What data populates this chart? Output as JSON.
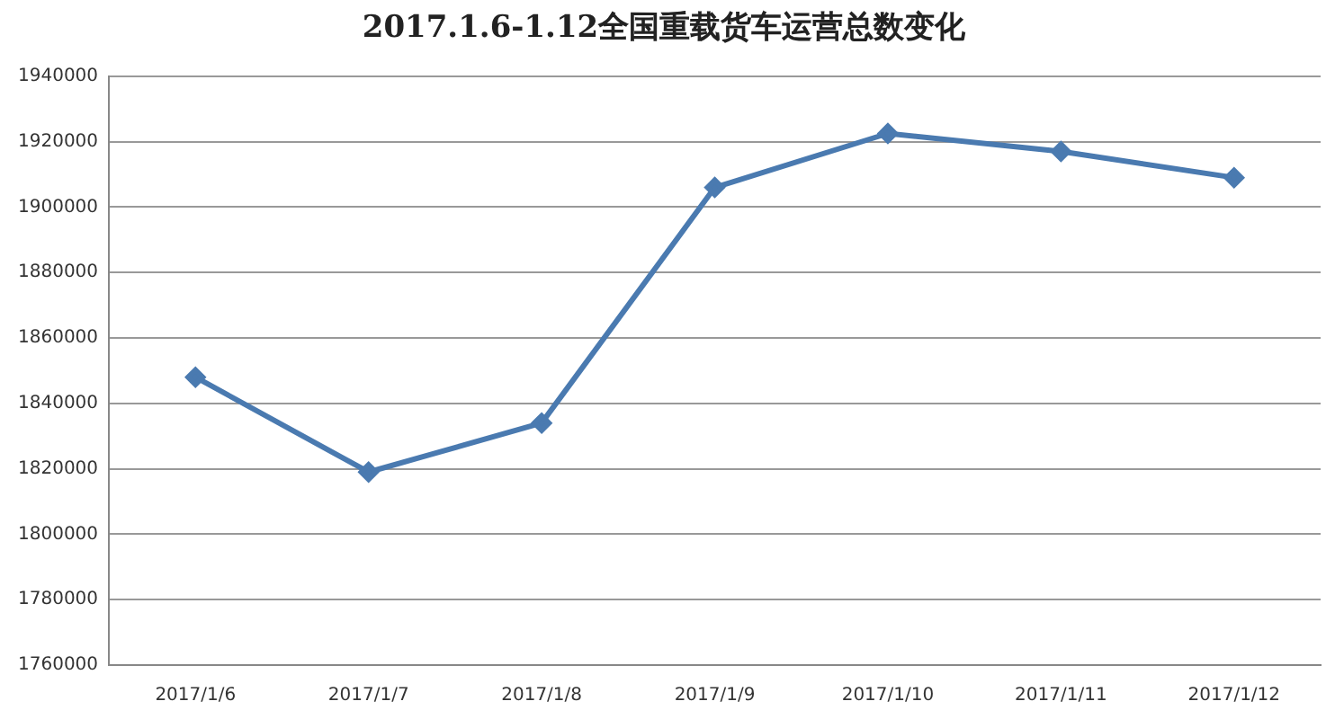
{
  "chart_data": {
    "type": "line",
    "title": "2017.1.6-1.12全国重载货车运营总数变化",
    "categories": [
      "2017/1/6",
      "2017/1/7",
      "2017/1/8",
      "2017/1/9",
      "2017/1/10",
      "2017/1/11",
      "2017/1/12"
    ],
    "series": [
      {
        "color": "#4a7ab0",
        "values": [
          1848000,
          1819000,
          1834000,
          1906000,
          1922500,
          1917000,
          1909000
        ]
      }
    ],
    "ylim": [
      1760000,
      1940000
    ],
    "yticks": [
      1760000,
      1780000,
      1800000,
      1820000,
      1840000,
      1860000,
      1880000,
      1900000,
      1920000,
      1940000
    ],
    "grid": "y",
    "legend": false,
    "marker": "diamond",
    "line_style": "solid"
  }
}
